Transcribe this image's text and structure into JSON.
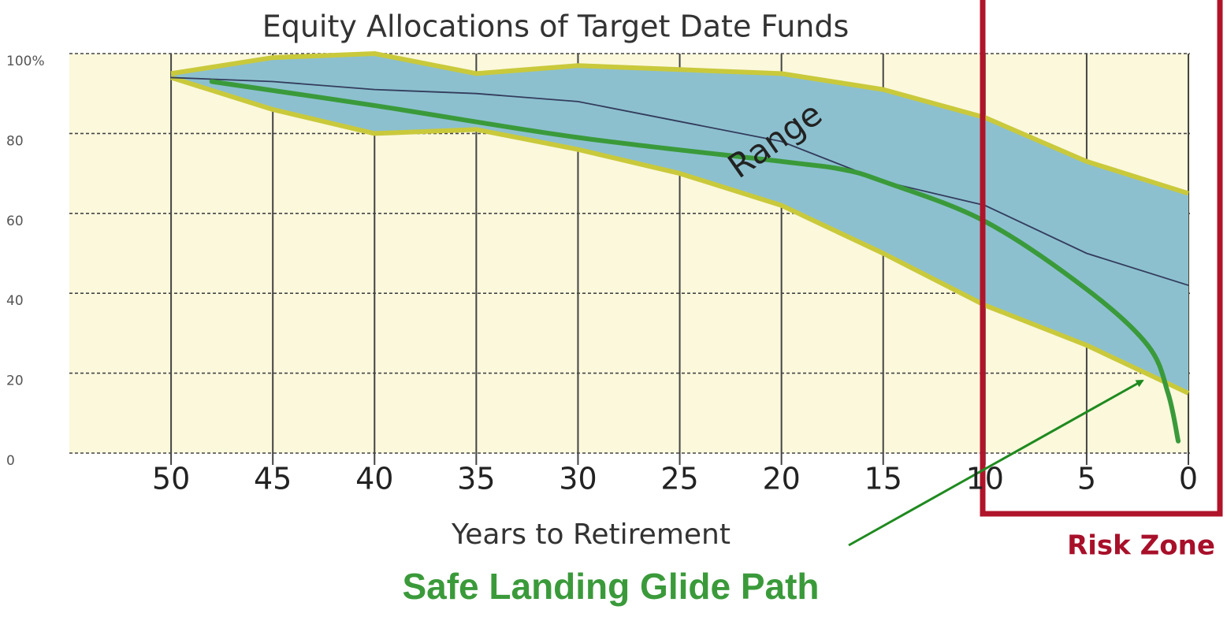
{
  "chart_data": {
    "type": "line",
    "title": "Equity Allocations of Target Date Funds",
    "x_label": "Years to Retirement",
    "x": [
      50,
      45,
      40,
      35,
      30,
      25,
      20,
      15,
      10,
      5,
      0
    ],
    "xlim": [
      55,
      0
    ],
    "xticks": [
      50,
      45,
      40,
      35,
      30,
      25,
      20,
      15,
      10,
      5,
      0
    ],
    "ylim": [
      0,
      100
    ],
    "yticks": [
      0,
      20,
      40,
      60,
      80,
      {
        "value": 100,
        "label": "100%"
      }
    ],
    "grid": true,
    "range": {
      "label": "Range",
      "color": "#8cc0cf",
      "edge_color": "#c9c93c",
      "upper": [
        95,
        99,
        100,
        95,
        97,
        96,
        95,
        91,
        84,
        73,
        65
      ],
      "lower": [
        94,
        86,
        80,
        81,
        76,
        70,
        62,
        50,
        37,
        27,
        15
      ]
    },
    "series": [
      {
        "color": "#333c5c",
        "x": [
          50,
          45,
          40,
          35,
          30,
          25,
          20,
          15,
          10,
          5,
          0
        ],
        "values": [
          94,
          93,
          91,
          90,
          88,
          83,
          78,
          68,
          62,
          50,
          42
        ]
      },
      {
        "color": "#3a9a3a",
        "x": [
          48,
          40,
          30,
          20,
          17,
          15,
          10,
          5,
          2,
          1,
          0.5
        ],
        "values": [
          93,
          87,
          79,
          73,
          71,
          68,
          58,
          41,
          27,
          15,
          3
        ]
      }
    ],
    "annotations": {
      "risk_zone": "Risk Zone",
      "glide_path": "Safe Landing Glide Path"
    }
  }
}
